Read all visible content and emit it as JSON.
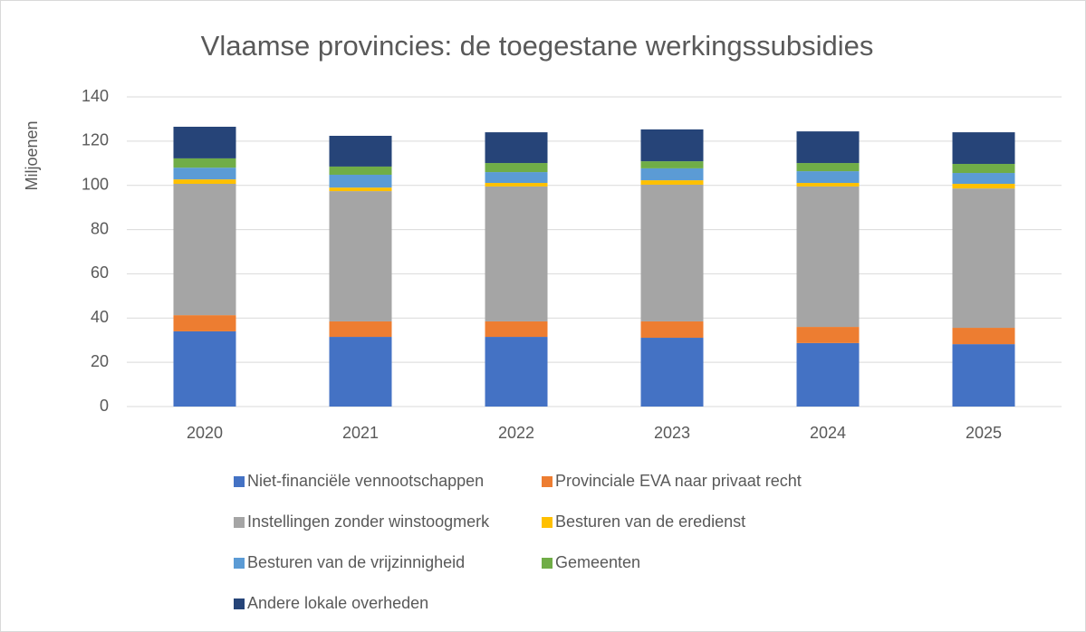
{
  "chart_data": {
    "type": "bar",
    "stacked": true,
    "title": "Vlaamse provincies: de toegestane werkingssubsidies",
    "y_label": "Miljoenen",
    "categories": [
      "2020",
      "2021",
      "2022",
      "2023",
      "2024",
      "2025"
    ],
    "series": [
      {
        "name": "Niet-financiële vennootschappen",
        "color": "#4472c4",
        "values": [
          34,
          31.5,
          31.5,
          31.1,
          28.7,
          28.2
        ]
      },
      {
        "name": "Provinciale EVA naar privaat recht",
        "color": "#ed7d31",
        "values": [
          7.3,
          7,
          7,
          7.4,
          7.3,
          7.4
        ]
      },
      {
        "name": "Instellingen zonder winstoogmerk",
        "color": "#a5a5a5",
        "values": [
          59.4,
          58.9,
          61,
          61.8,
          63.5,
          63
        ]
      },
      {
        "name": "Besturen van de eredienst",
        "color": "#ffc000",
        "values": [
          2,
          1.6,
          1.6,
          2,
          1.6,
          2.1
        ]
      },
      {
        "name": "Besturen van de vrijzinnigheid",
        "color": "#5b9bd5",
        "values": [
          5.3,
          5.8,
          4.9,
          5.4,
          5.3,
          4.9
        ]
      },
      {
        "name": "Gemeenten",
        "color": "#70ad47",
        "values": [
          4.2,
          3.7,
          4.1,
          3.2,
          3.7,
          4.1
        ]
      },
      {
        "name": "Andere lokale overheden",
        "color": "#264478",
        "values": [
          14.3,
          13.9,
          13.9,
          14.4,
          14.3,
          14.3
        ]
      }
    ],
    "ylim": [
      0,
      140
    ],
    "yticks": [
      0,
      20,
      40,
      60,
      80,
      100,
      120,
      140
    ],
    "grid": true
  }
}
